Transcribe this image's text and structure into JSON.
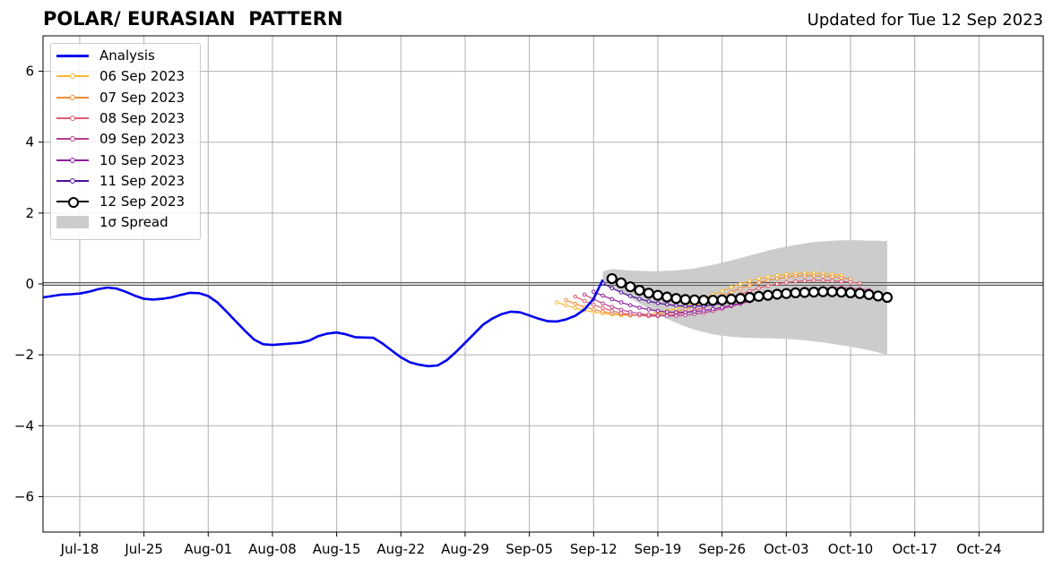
{
  "header": {
    "title": "POLAR/ EURASIAN  PATTERN",
    "updated": "Updated for Tue 12 Sep 2023"
  },
  "chart_data": {
    "type": "line",
    "xlim": [
      0,
      109
    ],
    "ylim": [
      -7,
      7
    ],
    "yticks": [
      -6,
      -4,
      -2,
      0,
      2,
      4,
      6
    ],
    "ytick_labels": [
      "−6",
      "−4",
      "−2",
      "0",
      "2",
      "4",
      "6"
    ],
    "xticks": [
      4,
      11,
      18,
      25,
      32,
      39,
      46,
      53,
      60,
      67,
      74,
      81,
      88,
      95,
      102
    ],
    "xtick_labels": [
      "Jul-18",
      "Jul-25",
      "Aug-01",
      "Aug-08",
      "Aug-15",
      "Aug-22",
      "Aug-29",
      "Sep-05",
      "Sep-12",
      "Sep-19",
      "Sep-26",
      "Oct-03",
      "Oct-10",
      "Oct-17",
      "Oct-24"
    ],
    "grid": true,
    "legend_position": "top-left",
    "analysis": {
      "name": "Analysis",
      "color": "#0000ee",
      "x": [
        0,
        1,
        2,
        3,
        4,
        5,
        6,
        7,
        8,
        9,
        10,
        11,
        12,
        13,
        14,
        15,
        16,
        17,
        18,
        19,
        20,
        21,
        22,
        23,
        24,
        25,
        26,
        27,
        28,
        29,
        30,
        31,
        32,
        33,
        34,
        35,
        36,
        37,
        38,
        39,
        40,
        41,
        42,
        43,
        44,
        45,
        46,
        47,
        48,
        49,
        50,
        51,
        52,
        53,
        54,
        55,
        56,
        57,
        58,
        59,
        60,
        61
      ],
      "y": [
        -0.38,
        -0.34,
        -0.3,
        -0.29,
        -0.27,
        -0.22,
        -0.15,
        -0.1,
        -0.13,
        -0.22,
        -0.33,
        -0.42,
        -0.44,
        -0.42,
        -0.38,
        -0.31,
        -0.25,
        -0.26,
        -0.34,
        -0.52,
        -0.78,
        -1.05,
        -1.32,
        -1.57,
        -1.7,
        -1.72,
        -1.7,
        -1.68,
        -1.66,
        -1.6,
        -1.47,
        -1.4,
        -1.37,
        -1.42,
        -1.5,
        -1.51,
        -1.52,
        -1.68,
        -1.88,
        -2.07,
        -2.21,
        -2.28,
        -2.32,
        -2.3,
        -2.15,
        -1.92,
        -1.66,
        -1.4,
        -1.14,
        -0.97,
        -0.85,
        -0.78,
        -0.8,
        -0.89,
        -0.98,
        -1.05,
        -1.06,
        -1.0,
        -0.9,
        -0.72,
        -0.42,
        0.12
      ]
    },
    "spread": {
      "name": "1σ Spread",
      "color": "#cccccc",
      "x": [
        61,
        62,
        63,
        64,
        65,
        66,
        67,
        68,
        69,
        70,
        71,
        72,
        73,
        74,
        75,
        76,
        77,
        78,
        79,
        80,
        81,
        82,
        83,
        84,
        85,
        86,
        87,
        88,
        89,
        90,
        91,
        92
      ],
      "upper": [
        0.35,
        0.42,
        0.4,
        0.38,
        0.37,
        0.36,
        0.36,
        0.37,
        0.38,
        0.41,
        0.44,
        0.49,
        0.54,
        0.6,
        0.66,
        0.73,
        0.8,
        0.87,
        0.94,
        1.0,
        1.05,
        1.1,
        1.14,
        1.18,
        1.2,
        1.22,
        1.23,
        1.23,
        1.23,
        1.22,
        1.22,
        1.21
      ],
      "lower": [
        0.0,
        -0.1,
        -0.25,
        -0.4,
        -0.55,
        -0.7,
        -0.85,
        -0.98,
        -1.1,
        -1.2,
        -1.29,
        -1.36,
        -1.42,
        -1.46,
        -1.49,
        -1.51,
        -1.52,
        -1.53,
        -1.53,
        -1.54,
        -1.55,
        -1.57,
        -1.59,
        -1.62,
        -1.65,
        -1.69,
        -1.73,
        -1.77,
        -1.82,
        -1.87,
        -1.93,
        -2.0
      ]
    },
    "series": [
      {
        "name": "06 Sep 2023",
        "color": "#f5b731",
        "x": [
          56,
          57,
          58,
          59,
          60,
          61,
          62,
          63,
          64,
          65,
          66,
          67,
          68,
          69,
          70,
          71,
          72,
          73,
          74,
          75,
          76,
          77,
          78,
          79,
          80,
          81,
          82,
          83,
          84,
          85,
          86,
          87
        ],
        "y": [
          -0.52,
          -0.6,
          -0.68,
          -0.74,
          -0.79,
          -0.83,
          -0.86,
          -0.88,
          -0.89,
          -0.88,
          -0.86,
          -0.82,
          -0.76,
          -0.69,
          -0.61,
          -0.51,
          -0.41,
          -0.3,
          -0.2,
          -0.09,
          0.0,
          0.08,
          0.15,
          0.2,
          0.24,
          0.27,
          0.29,
          0.3,
          0.3,
          0.29,
          0.27,
          0.24
        ]
      },
      {
        "name": "07 Sep 2023",
        "color": "#f08c3c",
        "x": [
          57,
          58,
          59,
          60,
          61,
          62,
          63,
          64,
          65,
          66,
          67,
          68,
          69,
          70,
          71,
          72,
          73,
          74,
          75,
          76,
          77,
          78,
          79,
          80,
          81,
          82,
          83,
          84,
          85,
          86,
          87,
          88
        ],
        "y": [
          -0.46,
          -0.56,
          -0.65,
          -0.72,
          -0.78,
          -0.83,
          -0.86,
          -0.88,
          -0.89,
          -0.89,
          -0.87,
          -0.83,
          -0.78,
          -0.71,
          -0.62,
          -0.53,
          -0.43,
          -0.33,
          -0.23,
          -0.13,
          -0.04,
          0.04,
          0.1,
          0.15,
          0.19,
          0.22,
          0.23,
          0.23,
          0.22,
          0.2,
          0.17,
          0.14
        ]
      },
      {
        "name": "08 Sep 2023",
        "color": "#e05c6e",
        "x": [
          58,
          59,
          60,
          61,
          62,
          63,
          64,
          65,
          66,
          67,
          68,
          69,
          70,
          71,
          72,
          73,
          74,
          75,
          76,
          77,
          78,
          79,
          80,
          81,
          82,
          83,
          84,
          85,
          86,
          87,
          88,
          89
        ],
        "y": [
          -0.36,
          -0.48,
          -0.59,
          -0.68,
          -0.76,
          -0.82,
          -0.86,
          -0.89,
          -0.91,
          -0.91,
          -0.89,
          -0.86,
          -0.81,
          -0.74,
          -0.66,
          -0.57,
          -0.48,
          -0.38,
          -0.29,
          -0.2,
          -0.12,
          -0.05,
          0.0,
          0.04,
          0.07,
          0.09,
          0.1,
          0.1,
          0.09,
          0.07,
          0.05,
          0.02
        ]
      },
      {
        "name": "09 Sep 2023",
        "color": "#b83f8c",
        "x": [
          59,
          60,
          61,
          62,
          63,
          64,
          65,
          66,
          67,
          68,
          69,
          70,
          71,
          72,
          73,
          74,
          75,
          76,
          77,
          78,
          79,
          80,
          81,
          82,
          83,
          84,
          85,
          86,
          87,
          88,
          89,
          90
        ],
        "y": [
          -0.3,
          -0.43,
          -0.55,
          -0.65,
          -0.73,
          -0.79,
          -0.84,
          -0.87,
          -0.89,
          -0.9,
          -0.9,
          -0.88,
          -0.85,
          -0.81,
          -0.76,
          -0.7,
          -0.63,
          -0.56,
          -0.49,
          -0.42,
          -0.36,
          -0.3,
          -0.25,
          -0.2,
          -0.17,
          -0.14,
          -0.12,
          -0.11,
          -0.11,
          -0.12,
          -0.14,
          -0.17
        ]
      },
      {
        "name": "10 Sep 2023",
        "color": "#8b1fa0",
        "x": [
          60,
          61,
          62,
          63,
          64,
          65,
          66,
          67,
          68,
          69,
          70,
          71,
          72,
          73,
          74,
          75,
          76,
          77,
          78,
          79,
          80,
          81,
          82,
          83,
          84,
          85,
          86,
          87,
          88,
          89,
          90,
          91
        ],
        "y": [
          -0.22,
          -0.33,
          -0.43,
          -0.52,
          -0.6,
          -0.67,
          -0.72,
          -0.76,
          -0.79,
          -0.8,
          -0.8,
          -0.78,
          -0.75,
          -0.71,
          -0.66,
          -0.6,
          -0.54,
          -0.48,
          -0.42,
          -0.37,
          -0.32,
          -0.28,
          -0.25,
          -0.23,
          -0.21,
          -0.2,
          -0.2,
          -0.21,
          -0.23,
          -0.25,
          -0.28,
          -0.31
        ]
      },
      {
        "name": "11 Sep 2023",
        "color": "#4f0fa0",
        "x": [
          61,
          62,
          63,
          64,
          65,
          66,
          67,
          68,
          69,
          70,
          71,
          72,
          73,
          74,
          75,
          76,
          77,
          78,
          79,
          80,
          81,
          82,
          83,
          84,
          85,
          86,
          87,
          88,
          89,
          90,
          91,
          92
        ],
        "y": [
          0.02,
          -0.12,
          -0.24,
          -0.34,
          -0.42,
          -0.49,
          -0.54,
          -0.58,
          -0.61,
          -0.63,
          -0.63,
          -0.62,
          -0.59,
          -0.55,
          -0.5,
          -0.45,
          -0.4,
          -0.35,
          -0.31,
          -0.27,
          -0.24,
          -0.22,
          -0.21,
          -0.2,
          -0.2,
          -0.21,
          -0.22,
          -0.24,
          -0.27,
          -0.3,
          -0.33,
          -0.36
        ]
      },
      {
        "name": "12 Sep 2023",
        "color": "#000000",
        "x": [
          62,
          63,
          64,
          65,
          66,
          67,
          68,
          69,
          70,
          71,
          72,
          73,
          74,
          75,
          76,
          77,
          78,
          79,
          80,
          81,
          82,
          83,
          84,
          85,
          86,
          87,
          88,
          89,
          90,
          91,
          92
        ],
        "y": [
          0.15,
          0.03,
          -0.08,
          -0.18,
          -0.26,
          -0.32,
          -0.37,
          -0.41,
          -0.44,
          -0.45,
          -0.46,
          -0.46,
          -0.45,
          -0.43,
          -0.41,
          -0.38,
          -0.35,
          -0.32,
          -0.29,
          -0.27,
          -0.25,
          -0.24,
          -0.23,
          -0.22,
          -0.22,
          -0.23,
          -0.25,
          -0.27,
          -0.3,
          -0.34,
          -0.38
        ]
      }
    ]
  }
}
